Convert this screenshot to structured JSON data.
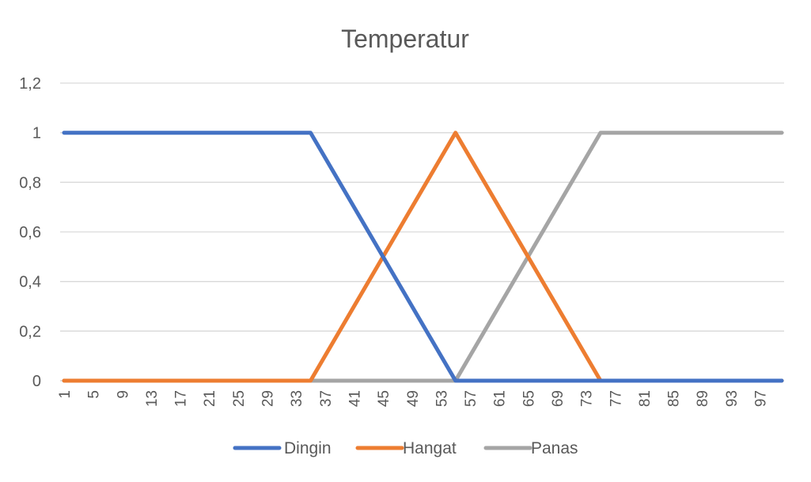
{
  "chart_data": {
    "type": "line",
    "title": "Temperatur",
    "xlabel": "",
    "ylabel": "",
    "x_start": 1,
    "x_end": 100,
    "x_tick_labels": [
      "1",
      "5",
      "9",
      "13",
      "17",
      "21",
      "25",
      "29",
      "33",
      "37",
      "41",
      "45",
      "49",
      "53",
      "57",
      "61",
      "65",
      "69",
      "73",
      "77",
      "81",
      "85",
      "89",
      "93",
      "97"
    ],
    "y_tick_labels": [
      "0",
      "0,2",
      "0,4",
      "0,6",
      "0,8",
      "1",
      "1,2"
    ],
    "ylim": [
      0,
      1.2
    ],
    "grid": "horizontal",
    "legend": "bottom",
    "series": [
      {
        "name": "Dingin",
        "color": "#4472C4",
        "points": [
          [
            1,
            1
          ],
          [
            35,
            1
          ],
          [
            55,
            0
          ],
          [
            100,
            0
          ]
        ]
      },
      {
        "name": "Hangat",
        "color": "#ED7D31",
        "points": [
          [
            1,
            0
          ],
          [
            35,
            0
          ],
          [
            55,
            1
          ],
          [
            75,
            0
          ],
          [
            100,
            0
          ]
        ]
      },
      {
        "name": "Panas",
        "color": "#A5A5A5",
        "points": [
          [
            1,
            0
          ],
          [
            55,
            0
          ],
          [
            75,
            1
          ],
          [
            100,
            1
          ]
        ]
      }
    ]
  }
}
